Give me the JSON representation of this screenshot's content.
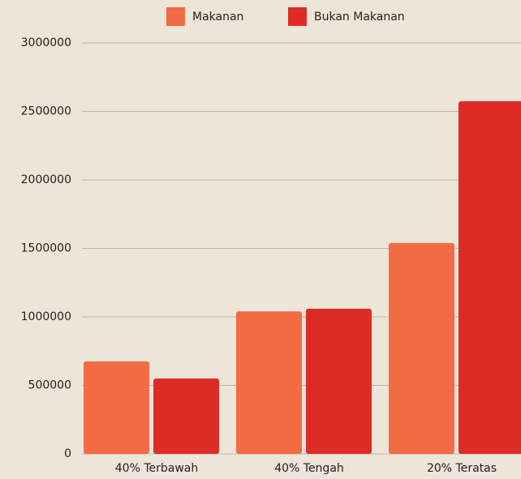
{
  "chart_data": {
    "type": "bar",
    "categories": [
      "40% Terbawah",
      "40% Tengah",
      "20% Teratas"
    ],
    "series": [
      {
        "name": "Makanan",
        "color": "#f26b43",
        "values": [
          675000,
          1040000,
          1540000
        ]
      },
      {
        "name": "Bukan Makanan",
        "color": "#dd2c26",
        "values": [
          550000,
          1060000,
          2575000
        ]
      }
    ],
    "ylim": [
      0,
      3000000
    ],
    "yticks": [
      0,
      500000,
      1000000,
      1500000,
      2000000,
      2500000,
      3000000
    ],
    "grid": true,
    "legend": "top"
  }
}
